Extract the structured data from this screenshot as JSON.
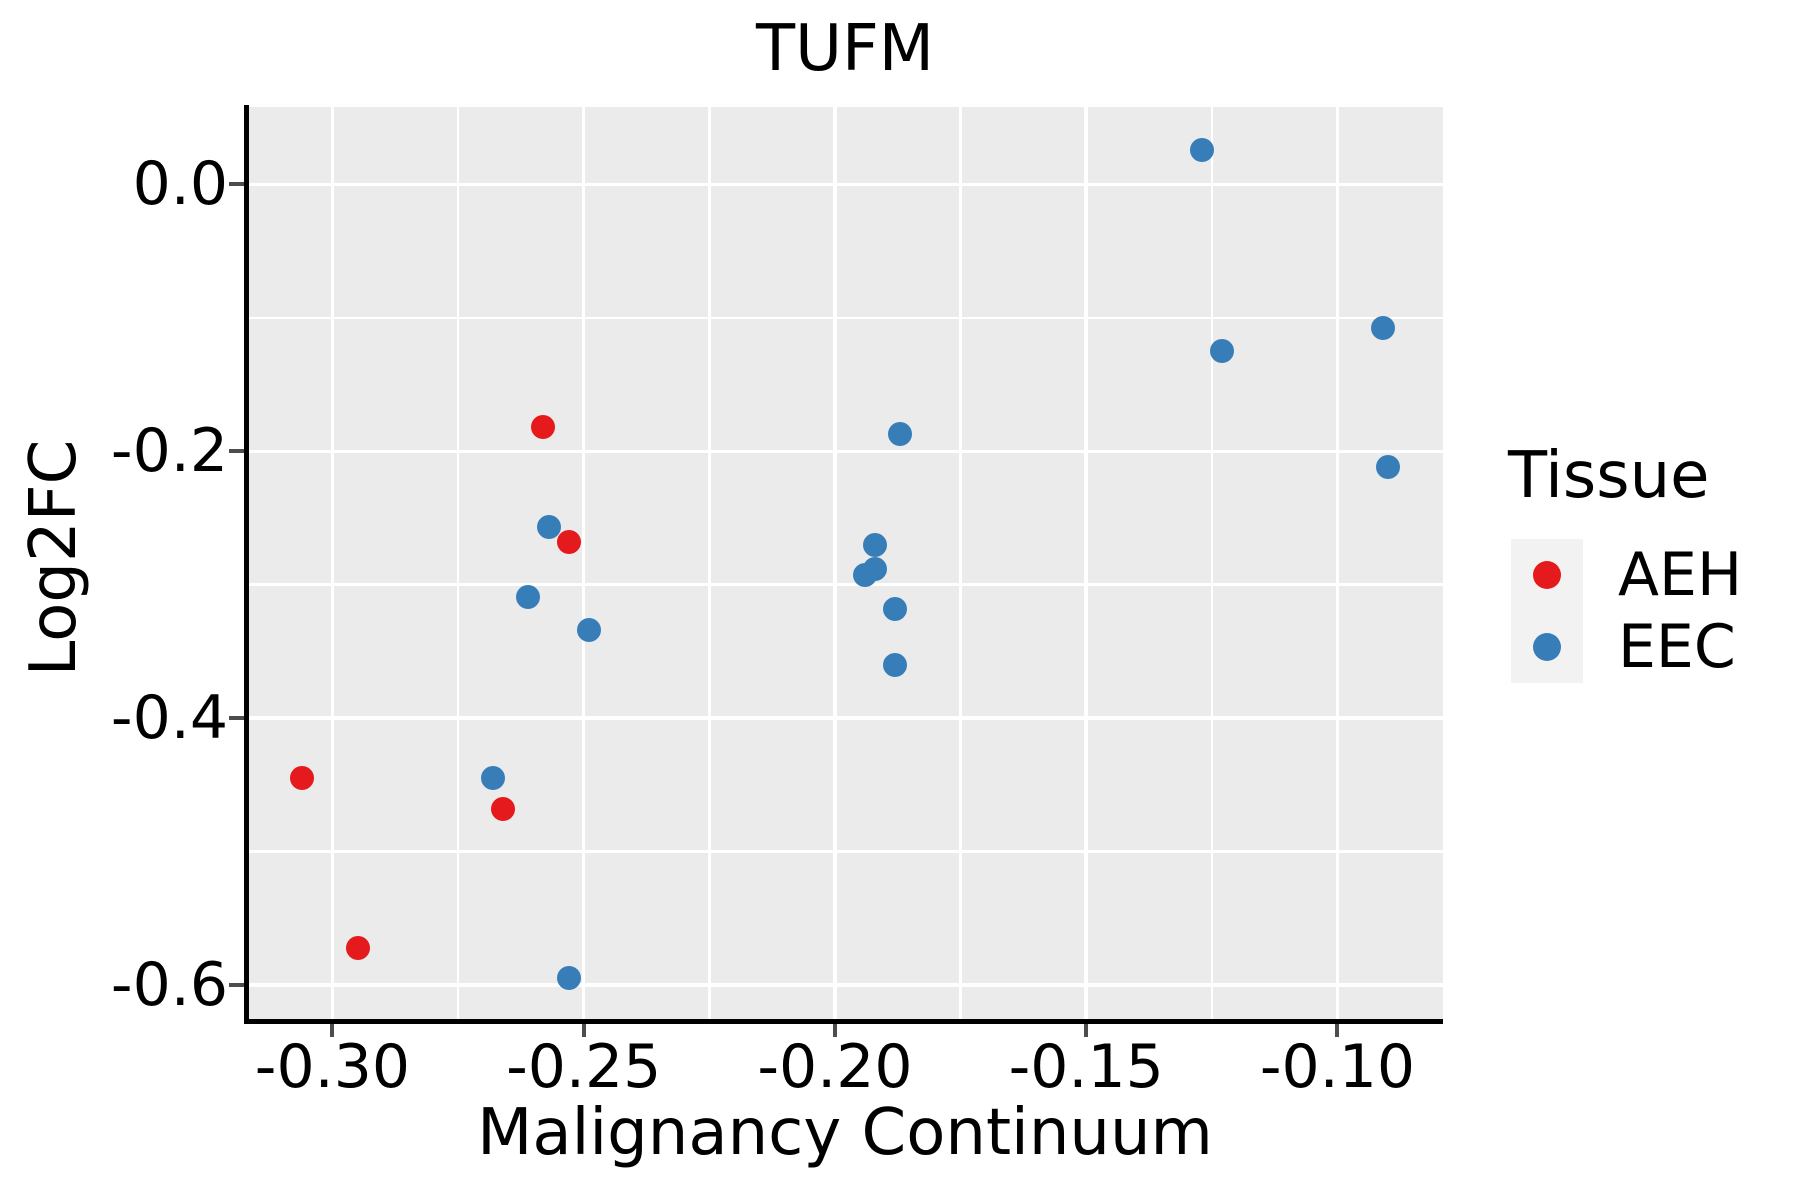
{
  "chart_data": {
    "type": "scatter",
    "title": "TUFM",
    "xlabel": "Malignancy Continuum",
    "ylabel": "Log2FC",
    "xlim": [
      -0.317,
      -0.079
    ],
    "ylim": [
      -0.627,
      0.058
    ],
    "x_ticks": [
      {
        "value": -0.3,
        "label": "-0.30"
      },
      {
        "value": -0.25,
        "label": "-0.25"
      },
      {
        "value": -0.2,
        "label": "-0.20"
      },
      {
        "value": -0.15,
        "label": "-0.15"
      },
      {
        "value": -0.1,
        "label": "-0.10"
      }
    ],
    "y_ticks": [
      {
        "value": 0.0,
        "label": "0.0"
      },
      {
        "value": -0.2,
        "label": "-0.2"
      },
      {
        "value": -0.4,
        "label": "-0.4"
      },
      {
        "value": -0.6,
        "label": "-0.6"
      }
    ],
    "x_minor_ticks": [
      -0.275,
      -0.225,
      -0.175,
      -0.125
    ],
    "y_minor_ticks": [
      -0.5,
      -0.3,
      -0.1
    ],
    "grid": {
      "major": true,
      "minor": true
    },
    "legend": {
      "title": "Tissue",
      "position": "right",
      "entries": [
        {
          "label": "AEH",
          "color": "#E41A1C"
        },
        {
          "label": "EEC",
          "color": "#377EB8"
        }
      ]
    },
    "series": [
      {
        "name": "AEH",
        "color": "#E41A1C",
        "points": [
          [
            -0.306,
            -0.445
          ],
          [
            -0.295,
            -0.572
          ],
          [
            -0.266,
            -0.468
          ],
          [
            -0.258,
            -0.182
          ],
          [
            -0.253,
            -0.268
          ]
        ]
      },
      {
        "name": "EEC",
        "color": "#377EB8",
        "points": [
          [
            -0.268,
            -0.445
          ],
          [
            -0.261,
            -0.309
          ],
          [
            -0.257,
            -0.257
          ],
          [
            -0.253,
            -0.595
          ],
          [
            -0.249,
            -0.334
          ],
          [
            -0.194,
            -0.293
          ],
          [
            -0.192,
            -0.288
          ],
          [
            -0.192,
            -0.27
          ],
          [
            -0.188,
            -0.318
          ],
          [
            -0.188,
            -0.36
          ],
          [
            -0.187,
            -0.187
          ],
          [
            -0.127,
            0.026
          ],
          [
            -0.123,
            -0.125
          ],
          [
            -0.091,
            -0.108
          ],
          [
            -0.09,
            -0.212
          ]
        ]
      }
    ],
    "colors": {
      "panel_background": "#EBEBEB",
      "grid": "#FFFFFF",
      "axis_line": "#000000",
      "tick_mark": "#4D4D4D",
      "legend_key_background": "#F2F2F2",
      "text": "#000000"
    }
  }
}
